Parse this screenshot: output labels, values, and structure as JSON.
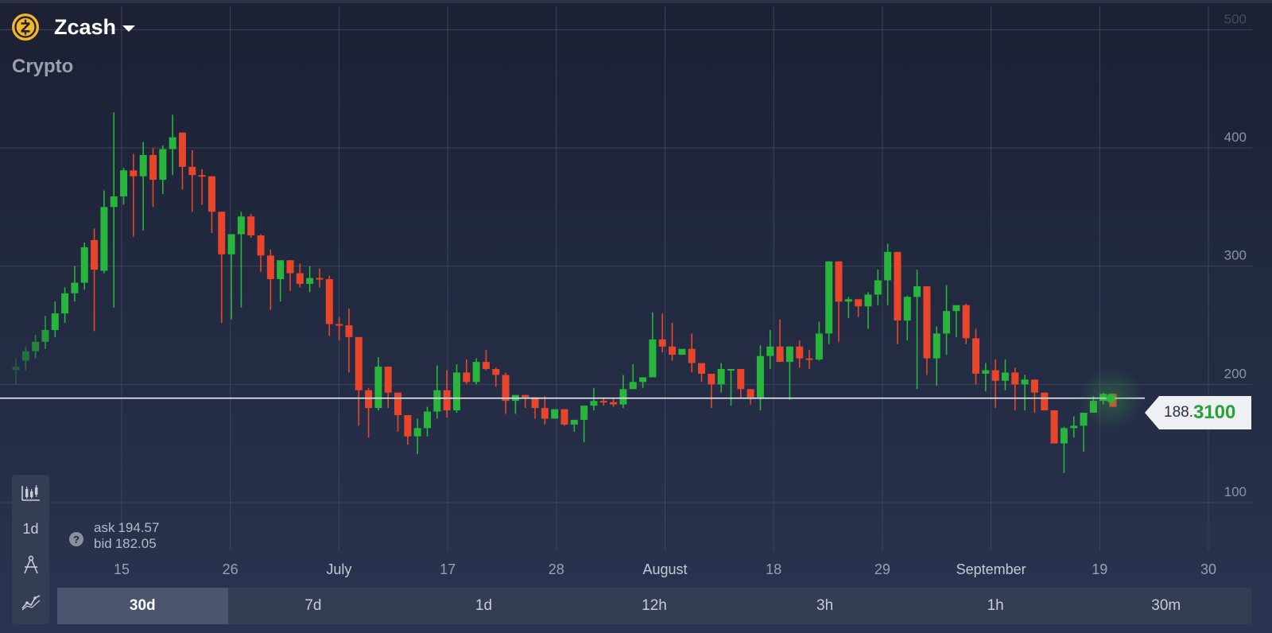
{
  "asset": {
    "name": "Zcash",
    "category": "Crypto",
    "logo_icon": "zcash-logo-icon",
    "logo_color": "#f4b728"
  },
  "price": {
    "main": "188.",
    "accent": "3100",
    "value": 188.31
  },
  "quote": {
    "ask_label": "ask",
    "ask_value": "194.57",
    "bid_label": "bid",
    "bid_value": "182.05"
  },
  "toolbar": {
    "chart_type_icon": "candlestick-icon",
    "interval_label": "1d",
    "drawing_icon": "compass-icon",
    "indicators_icon": "indicator-icon"
  },
  "periods": [
    {
      "label": "30d",
      "active": true
    },
    {
      "label": "7d",
      "active": false
    },
    {
      "label": "1d",
      "active": false
    },
    {
      "label": "12h",
      "active": false
    },
    {
      "label": "3h",
      "active": false
    },
    {
      "label": "1h",
      "active": false
    },
    {
      "label": "30m",
      "active": false
    }
  ],
  "colors": {
    "up": "#27b53b",
    "down": "#e8452a",
    "price_line": "#e9ecf2",
    "accent": "#27a235"
  },
  "chart_data": {
    "type": "candlestick",
    "y_ticks": [
      100,
      200,
      300,
      400,
      500
    ],
    "ylim": [
      48,
      524
    ],
    "x_ticks": [
      {
        "label": "15",
        "day": 0,
        "month": false
      },
      {
        "label": "26",
        "day": 11,
        "month": false
      },
      {
        "label": "July",
        "day": 22,
        "month": true
      },
      {
        "label": "17",
        "day": 33,
        "month": false
      },
      {
        "label": "28",
        "day": 44,
        "month": false
      },
      {
        "label": "August",
        "day": 55,
        "month": true
      },
      {
        "label": "18",
        "day": 66,
        "month": false
      },
      {
        "label": "29",
        "day": 77,
        "month": false
      },
      {
        "label": "September",
        "day": 88,
        "month": true
      },
      {
        "label": "19",
        "day": 99,
        "month": false
      },
      {
        "label": "30",
        "day": 110,
        "month": false
      }
    ],
    "x_range": [
      -12,
      110
    ],
    "current_price": 188.31,
    "candles_ohlc": [
      [
        212,
        222,
        200,
        215
      ],
      [
        220,
        232,
        212,
        228
      ],
      [
        228,
        242,
        222,
        236
      ],
      [
        236,
        258,
        230,
        246
      ],
      [
        246,
        270,
        240,
        260
      ],
      [
        260,
        282,
        252,
        277
      ],
      [
        277,
        300,
        270,
        286
      ],
      [
        286,
        320,
        280,
        316
      ],
      [
        322,
        332,
        245,
        297
      ],
      [
        296,
        364,
        294,
        350
      ],
      [
        350,
        430,
        265,
        359
      ],
      [
        359,
        383,
        352,
        381
      ],
      [
        381,
        395,
        325,
        376
      ],
      [
        376,
        405,
        330,
        394
      ],
      [
        394,
        400,
        350,
        373
      ],
      [
        373,
        402,
        361,
        399
      ],
      [
        399,
        428,
        377,
        409
      ],
      [
        413,
        413,
        365,
        384
      ],
      [
        384,
        398,
        346,
        377
      ],
      [
        377,
        382,
        352,
        376
      ],
      [
        376,
        375,
        328,
        346
      ],
      [
        346,
        342,
        252,
        310
      ],
      [
        310,
        302,
        255,
        327
      ],
      [
        327,
        346,
        265,
        342
      ],
      [
        342,
        344,
        324,
        326
      ],
      [
        326,
        327,
        295,
        309
      ],
      [
        309,
        314,
        263,
        289
      ],
      [
        289,
        299,
        270,
        305
      ],
      [
        305,
        296,
        279,
        294
      ],
      [
        294,
        302,
        282,
        285
      ],
      [
        285,
        300,
        278,
        290
      ],
      [
        290,
        298,
        282,
        289
      ],
      [
        289,
        292,
        241,
        251
      ],
      [
        251,
        257,
        237,
        250
      ],
      [
        250,
        264,
        210,
        240
      ],
      [
        240,
        240,
        165,
        195
      ],
      [
        195,
        197,
        155,
        180
      ],
      [
        180,
        223,
        178,
        215
      ],
      [
        215,
        214,
        180,
        193
      ],
      [
        193,
        186,
        160,
        174
      ],
      [
        174,
        172,
        149,
        156
      ],
      [
        156,
        171,
        141,
        163
      ],
      [
        163,
        181,
        156,
        177
      ],
      [
        177,
        216,
        171,
        195
      ],
      [
        195,
        212,
        172,
        178
      ],
      [
        178,
        217,
        176,
        210
      ],
      [
        210,
        221,
        200,
        202
      ],
      [
        202,
        222,
        200,
        219
      ],
      [
        219,
        229,
        212,
        213
      ],
      [
        213,
        214,
        198,
        208
      ],
      [
        208,
        210,
        175,
        186
      ],
      [
        186,
        191,
        175,
        191
      ],
      [
        191,
        187,
        180,
        189
      ],
      [
        189,
        185,
        171,
        180
      ],
      [
        180,
        190,
        166,
        171
      ],
      [
        171,
        172,
        172,
        179
      ],
      [
        179,
        174,
        165,
        166
      ],
      [
        166,
        168,
        160,
        170
      ],
      [
        170,
        170,
        151,
        182
      ],
      [
        182,
        197,
        178,
        186
      ],
      [
        186,
        189,
        182,
        185
      ],
      [
        185,
        188,
        181,
        183
      ],
      [
        183,
        208,
        180,
        196
      ],
      [
        196,
        217,
        196,
        202
      ],
      [
        202,
        206,
        197,
        206
      ],
      [
        206,
        261,
        206,
        238
      ],
      [
        238,
        260,
        227,
        232
      ],
      [
        232,
        252,
        220,
        225
      ],
      [
        225,
        226,
        225,
        230
      ],
      [
        230,
        243,
        210,
        218
      ],
      [
        218,
        216,
        202,
        209
      ],
      [
        209,
        202,
        180,
        200
      ],
      [
        200,
        218,
        193,
        213
      ],
      [
        213,
        209,
        182,
        213
      ],
      [
        213,
        213,
        188,
        196
      ],
      [
        196,
        185,
        183,
        189
      ],
      [
        189,
        233,
        178,
        224
      ],
      [
        224,
        246,
        213,
        232
      ],
      [
        232,
        255,
        227,
        219
      ],
      [
        219,
        220,
        187,
        232
      ],
      [
        232,
        237,
        214,
        222
      ],
      [
        222,
        229,
        213,
        221
      ],
      [
        221,
        253,
        220,
        243
      ],
      [
        243,
        304,
        234,
        304
      ],
      [
        304,
        273,
        236,
        270
      ],
      [
        270,
        274,
        256,
        272
      ],
      [
        272,
        269,
        257,
        266
      ],
      [
        266,
        278,
        247,
        276
      ],
      [
        276,
        297,
        267,
        288
      ],
      [
        288,
        319,
        267,
        312
      ],
      [
        312,
        305,
        234,
        254
      ],
      [
        254,
        275,
        237,
        274
      ],
      [
        274,
        297,
        196,
        283
      ],
      [
        283,
        261,
        208,
        222
      ],
      [
        222,
        249,
        199,
        243
      ],
      [
        243,
        284,
        225,
        262
      ],
      [
        262,
        260,
        240,
        267
      ],
      [
        267,
        268,
        234,
        239
      ],
      [
        239,
        247,
        200,
        209
      ],
      [
        209,
        218,
        194,
        212
      ],
      [
        212,
        221,
        180,
        203
      ],
      [
        203,
        221,
        195,
        210
      ],
      [
        210,
        214,
        178,
        200
      ],
      [
        200,
        208,
        178,
        204
      ],
      [
        204,
        199,
        176,
        193
      ],
      [
        193,
        192,
        185,
        178
      ],
      [
        178,
        150,
        152,
        150
      ],
      [
        150,
        164,
        125,
        163
      ],
      [
        163,
        173,
        155,
        165
      ],
      [
        165,
        169,
        143,
        176
      ],
      [
        176,
        190,
        176,
        186
      ],
      [
        186,
        193,
        183,
        192
      ],
      [
        192,
        192,
        186,
        181
      ]
    ]
  }
}
